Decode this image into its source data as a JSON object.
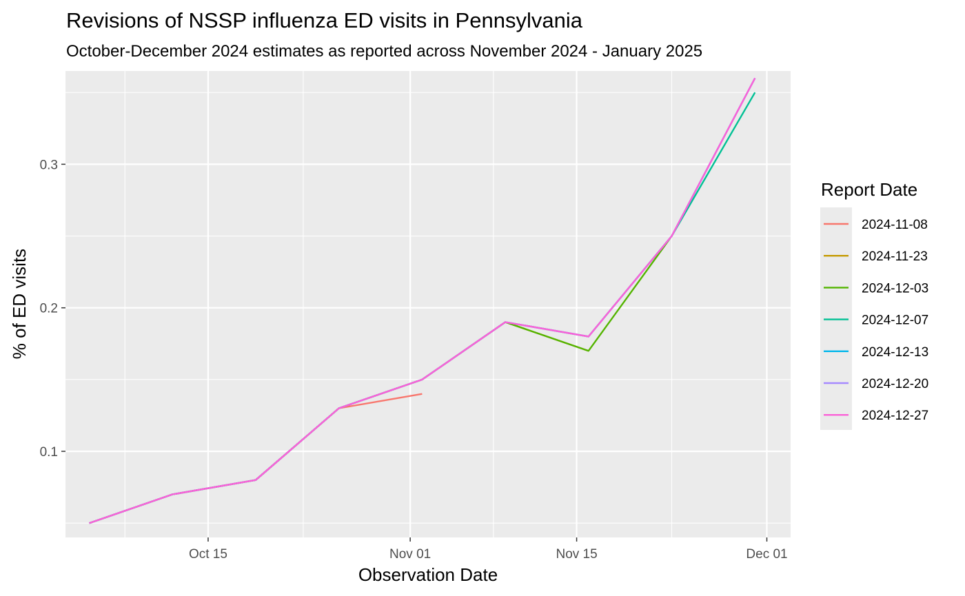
{
  "chart_data": {
    "type": "line",
    "title": "Revisions of NSSP influenza ED visits in Pennsylvania",
    "subtitle": "October-December 2024 estimates as reported across November 2024 - January 2025",
    "xlabel": "Observation Date",
    "ylabel": "% of ED visits",
    "x_ticks": [
      {
        "date": "2024-10-15",
        "label": "Oct 15"
      },
      {
        "date": "2024-11-01",
        "label": "Nov 01"
      },
      {
        "date": "2024-11-15",
        "label": "Nov 15"
      },
      {
        "date": "2024-12-01",
        "label": "Dec 01"
      }
    ],
    "x_minor_ticks": [
      "2024-10-08",
      "2024-10-23",
      "2024-11-08",
      "2024-11-23"
    ],
    "y_ticks": [
      0.1,
      0.2,
      0.3
    ],
    "y_minor_ticks": [
      0.05,
      0.15,
      0.25,
      0.35
    ],
    "xlim": [
      "2024-10-03",
      "2024-12-03"
    ],
    "ylim": [
      0.04,
      0.365
    ],
    "grid": true,
    "legend": {
      "title": "Report Date",
      "position": "right"
    },
    "series": [
      {
        "name": "2024-11-08",
        "color": "#F8766D",
        "x": [
          "2024-10-05",
          "2024-10-12",
          "2024-10-19",
          "2024-10-26",
          "2024-11-02"
        ],
        "y": [
          0.05,
          0.07,
          0.08,
          0.13,
          0.14
        ]
      },
      {
        "name": "2024-11-23",
        "color": "#C49A00",
        "x": [
          "2024-10-05",
          "2024-10-12",
          "2024-10-19",
          "2024-10-26",
          "2024-11-02",
          "2024-11-09",
          "2024-11-16"
        ],
        "y": [
          0.05,
          0.07,
          0.08,
          0.13,
          0.15,
          0.19,
          0.17
        ]
      },
      {
        "name": "2024-12-03",
        "color": "#53B400",
        "x": [
          "2024-10-05",
          "2024-10-12",
          "2024-10-19",
          "2024-10-26",
          "2024-11-02",
          "2024-11-09",
          "2024-11-16",
          "2024-11-23"
        ],
        "y": [
          0.05,
          0.07,
          0.08,
          0.13,
          0.15,
          0.19,
          0.17,
          0.25
        ]
      },
      {
        "name": "2024-12-07",
        "color": "#00C094",
        "x": [
          "2024-10-05",
          "2024-10-12",
          "2024-10-19",
          "2024-10-26",
          "2024-11-02",
          "2024-11-09",
          "2024-11-16",
          "2024-11-23",
          "2024-11-30"
        ],
        "y": [
          0.05,
          0.07,
          0.08,
          0.13,
          0.15,
          0.19,
          0.18,
          0.25,
          0.35
        ]
      },
      {
        "name": "2024-12-13",
        "color": "#00B6EB",
        "x": [
          "2024-10-05",
          "2024-10-12",
          "2024-10-19",
          "2024-10-26",
          "2024-11-02",
          "2024-11-09",
          "2024-11-16",
          "2024-11-23",
          "2024-11-30"
        ],
        "y": [
          0.05,
          0.07,
          0.08,
          0.13,
          0.15,
          0.19,
          0.18,
          0.25,
          0.36
        ]
      },
      {
        "name": "2024-12-20",
        "color": "#A58AFF",
        "x": [
          "2024-10-05",
          "2024-10-12",
          "2024-10-19",
          "2024-10-26",
          "2024-11-02",
          "2024-11-09",
          "2024-11-16",
          "2024-11-23",
          "2024-11-30"
        ],
        "y": [
          0.05,
          0.07,
          0.08,
          0.13,
          0.15,
          0.19,
          0.18,
          0.25,
          0.36
        ]
      },
      {
        "name": "2024-12-27",
        "color": "#FB61D7",
        "x": [
          "2024-10-05",
          "2024-10-12",
          "2024-10-19",
          "2024-10-26",
          "2024-11-02",
          "2024-11-09",
          "2024-11-16",
          "2024-11-23",
          "2024-11-30"
        ],
        "y": [
          0.05,
          0.07,
          0.08,
          0.13,
          0.15,
          0.19,
          0.18,
          0.25,
          0.36
        ]
      }
    ]
  }
}
